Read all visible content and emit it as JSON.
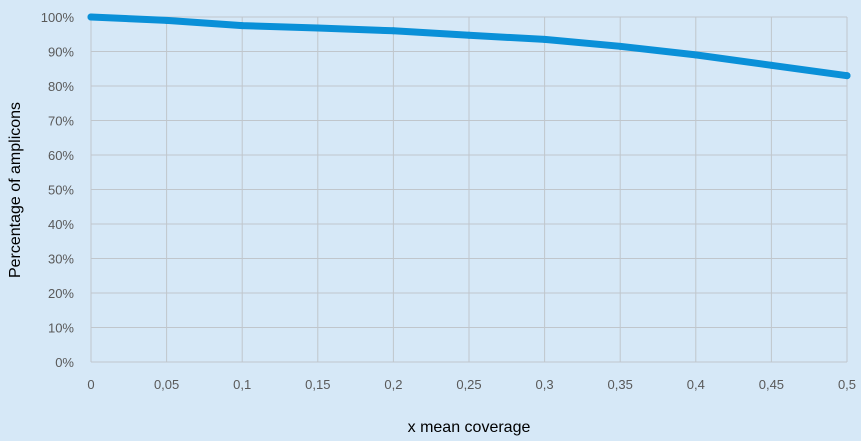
{
  "chart_data": {
    "type": "line",
    "title": "",
    "xlabel": "x mean coverage",
    "ylabel": "Percentage of amplicons",
    "x_tick_labels": [
      "0",
      "0,05",
      "0,1",
      "0,15",
      "0,2",
      "0,25",
      "0,3",
      "0,35",
      "0,4",
      "0,45",
      "0,5"
    ],
    "y_tick_labels": [
      "0%",
      "10%",
      "20%",
      "30%",
      "40%",
      "50%",
      "60%",
      "70%",
      "80%",
      "90%",
      "100%"
    ],
    "xlim": [
      0,
      0.5
    ],
    "ylim": [
      0,
      100
    ],
    "grid": true,
    "series": [
      {
        "color": "#0a90d8",
        "x": [
          0,
          0.05,
          0.1,
          0.15,
          0.2,
          0.25,
          0.3,
          0.35,
          0.4,
          0.45,
          0.5
        ],
        "y": [
          100,
          99,
          97.5,
          96.8,
          96,
          94.7,
          93.5,
          91.5,
          89,
          86,
          83
        ]
      }
    ]
  },
  "colors": {
    "background": "#d6e8f7",
    "gridline": "#c0c6cc",
    "line": "#0a90d8",
    "tick_text": "#595959"
  }
}
